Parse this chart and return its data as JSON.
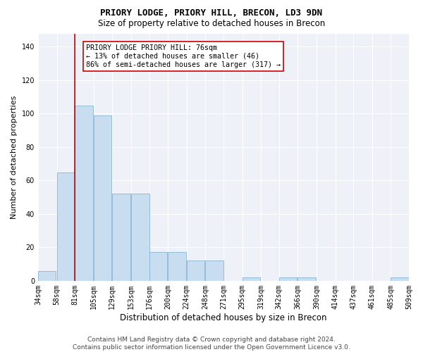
{
  "title": "PRIORY LODGE, PRIORY HILL, BRECON, LD3 9DN",
  "subtitle": "Size of property relative to detached houses in Brecon",
  "xlabel": "Distribution of detached houses by size in Brecon",
  "ylabel": "Number of detached properties",
  "bar_color": "#c9ddf0",
  "bar_edge_color": "#89b4d4",
  "background_color": "#eef2f8",
  "grid_color": "#ffffff",
  "annotation_text": "PRIORY LODGE PRIORY HILL: 76sqm\n← 13% of detached houses are smaller (46)\n86% of semi-detached houses are larger (317) →",
  "vline_color": "#cc0000",
  "categories": [
    "34sqm",
    "58sqm",
    "81sqm",
    "105sqm",
    "129sqm",
    "153sqm",
    "176sqm",
    "200sqm",
    "224sqm",
    "248sqm",
    "271sqm",
    "295sqm",
    "319sqm",
    "342sqm",
    "366sqm",
    "390sqm",
    "414sqm",
    "437sqm",
    "461sqm",
    "485sqm",
    "509sqm"
  ],
  "bar_left_edges": [
    34,
    58,
    81,
    105,
    129,
    153,
    176,
    200,
    224,
    248,
    271,
    295,
    319,
    342,
    366,
    390,
    414,
    437,
    461,
    485
  ],
  "bar_heights": [
    6,
    65,
    105,
    99,
    52,
    52,
    17,
    17,
    12,
    12,
    0,
    2,
    0,
    2,
    2,
    0,
    0,
    0,
    0,
    2
  ],
  "bin_width": 23,
  "ylim": [
    0,
    148
  ],
  "yticks": [
    0,
    20,
    40,
    60,
    80,
    100,
    120,
    140
  ],
  "footer_text": "Contains HM Land Registry data © Crown copyright and database right 2024.\nContains public sector information licensed under the Open Government Licence v3.0.",
  "annotation_box_edge_color": "#cc0000",
  "annotation_fontsize": 7.2,
  "title_fontsize": 9,
  "subtitle_fontsize": 8.5,
  "xlabel_fontsize": 8.5,
  "ylabel_fontsize": 8,
  "tick_fontsize": 7,
  "footer_fontsize": 6.5
}
